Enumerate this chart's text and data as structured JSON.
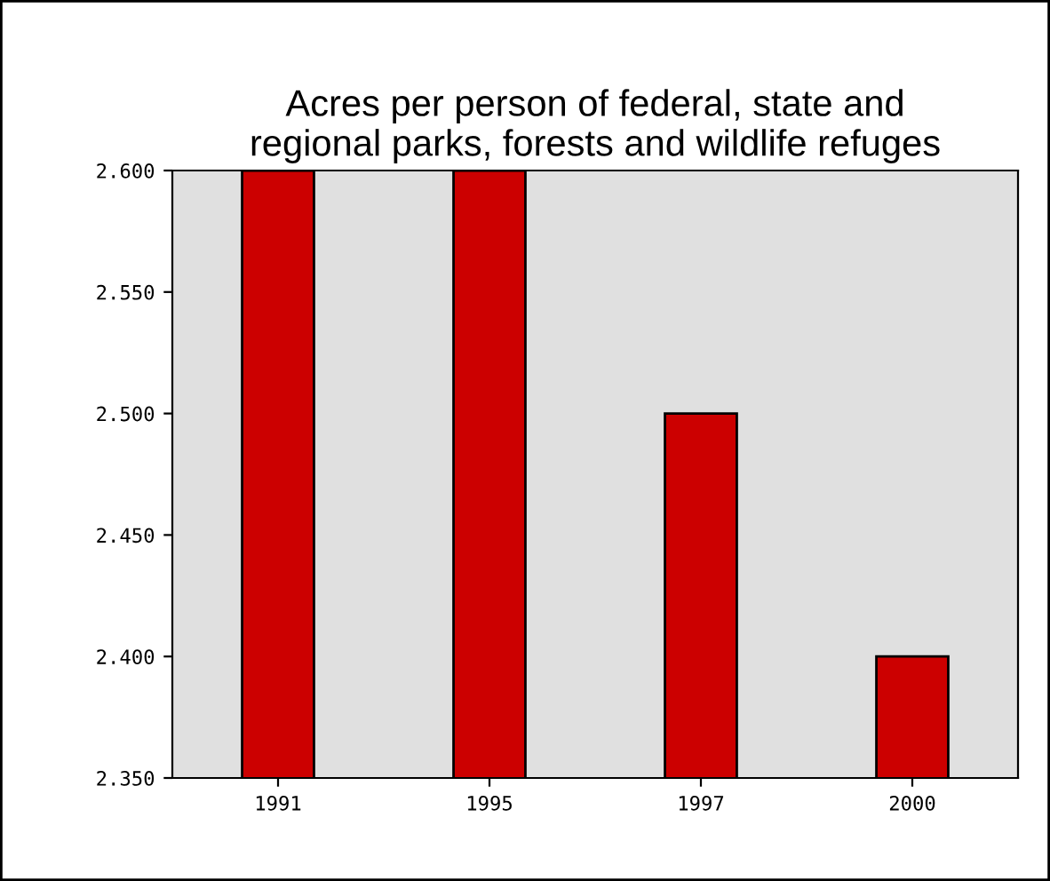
{
  "chart_data": {
    "type": "bar",
    "title": "Acres per person of federal, state and\nregional parks, forests and wildlife refuges",
    "categories": [
      "1991",
      "1995",
      "1997",
      "2000"
    ],
    "values": [
      2.6,
      2.6,
      2.5,
      2.4
    ],
    "color": "#cc0000",
    "ylim": [
      2.35,
      2.6
    ],
    "yticks": [
      {
        "value": 2.35,
        "label": "2.350"
      },
      {
        "value": 2.4,
        "label": "2.400"
      },
      {
        "value": 2.45,
        "label": "2.450"
      },
      {
        "value": 2.5,
        "label": "2.500"
      },
      {
        "value": 2.55,
        "label": "2.550"
      },
      {
        "value": 2.6,
        "label": "2.600"
      }
    ],
    "grid": false,
    "legend": false
  }
}
